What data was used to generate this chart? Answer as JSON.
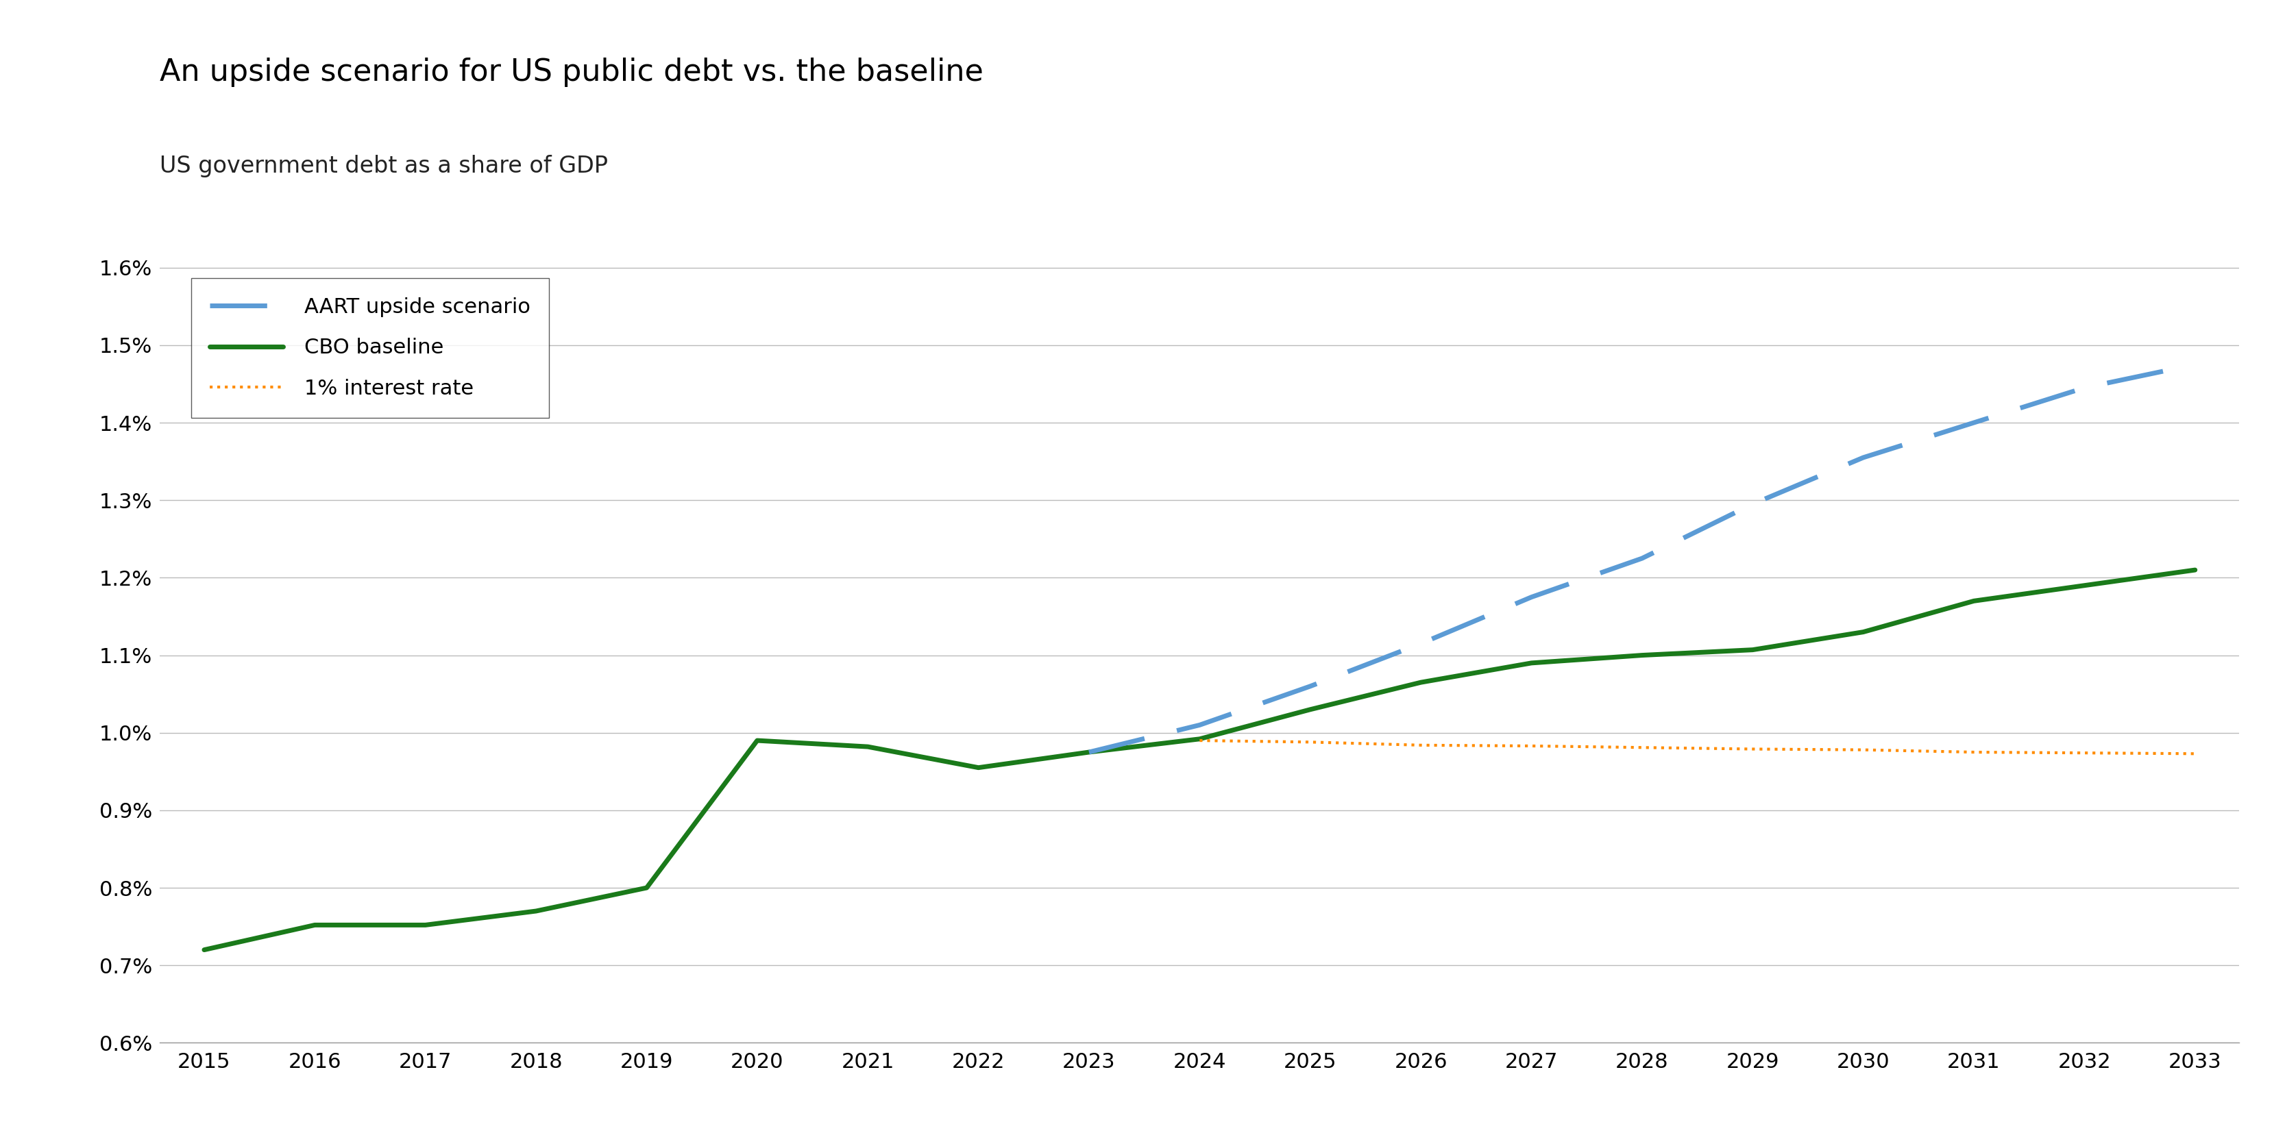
{
  "title": "An upside scenario for US public debt vs. the baseline",
  "subtitle": "US government debt as a share of GDP",
  "cbo_years": [
    2015,
    2016,
    2017,
    2018,
    2019,
    2020,
    2021,
    2022,
    2023,
    2024,
    2025,
    2026,
    2027,
    2028,
    2029,
    2030,
    2031,
    2032,
    2033
  ],
  "cbo_values": [
    0.72,
    0.752,
    0.752,
    0.77,
    0.8,
    0.99,
    0.982,
    0.955,
    0.975,
    0.992,
    1.03,
    1.065,
    1.09,
    1.1,
    1.107,
    1.13,
    1.17,
    1.19,
    1.21
  ],
  "aart_years": [
    2023,
    2024,
    2025,
    2026,
    2027,
    2028,
    2029,
    2030,
    2031,
    2032,
    2033
  ],
  "aart_values": [
    0.975,
    1.01,
    1.06,
    1.115,
    1.175,
    1.225,
    1.295,
    1.355,
    1.4,
    1.445,
    1.475
  ],
  "rate_years": [
    2024,
    2025,
    2026,
    2027,
    2028,
    2029,
    2030,
    2031,
    2032,
    2033
  ],
  "rate_values": [
    0.99,
    0.988,
    0.984,
    0.983,
    0.981,
    0.979,
    0.978,
    0.975,
    0.974,
    0.973
  ],
  "ylim": [
    0.6,
    1.62
  ],
  "yticks": [
    0.6,
    0.7,
    0.8,
    0.9,
    1.0,
    1.1,
    1.2,
    1.3,
    1.4,
    1.5,
    1.6
  ],
  "xlim_min": 2014.6,
  "xlim_max": 2033.4,
  "xticks": [
    2015,
    2016,
    2017,
    2018,
    2019,
    2020,
    2021,
    2022,
    2023,
    2024,
    2025,
    2026,
    2027,
    2028,
    2029,
    2030,
    2031,
    2032,
    2033
  ],
  "cbo_color": "#1a7a1a",
  "aart_color": "#5B9BD5",
  "rate_color": "#FF8C00",
  "title_fontsize": 32,
  "subtitle_fontsize": 24,
  "tick_fontsize": 22,
  "legend_fontsize": 22,
  "background_color": "#ffffff",
  "grid_color": "#bbbbbb",
  "legend_labels": [
    "AART upside scenario",
    "CBO baseline",
    "1% interest rate"
  ]
}
